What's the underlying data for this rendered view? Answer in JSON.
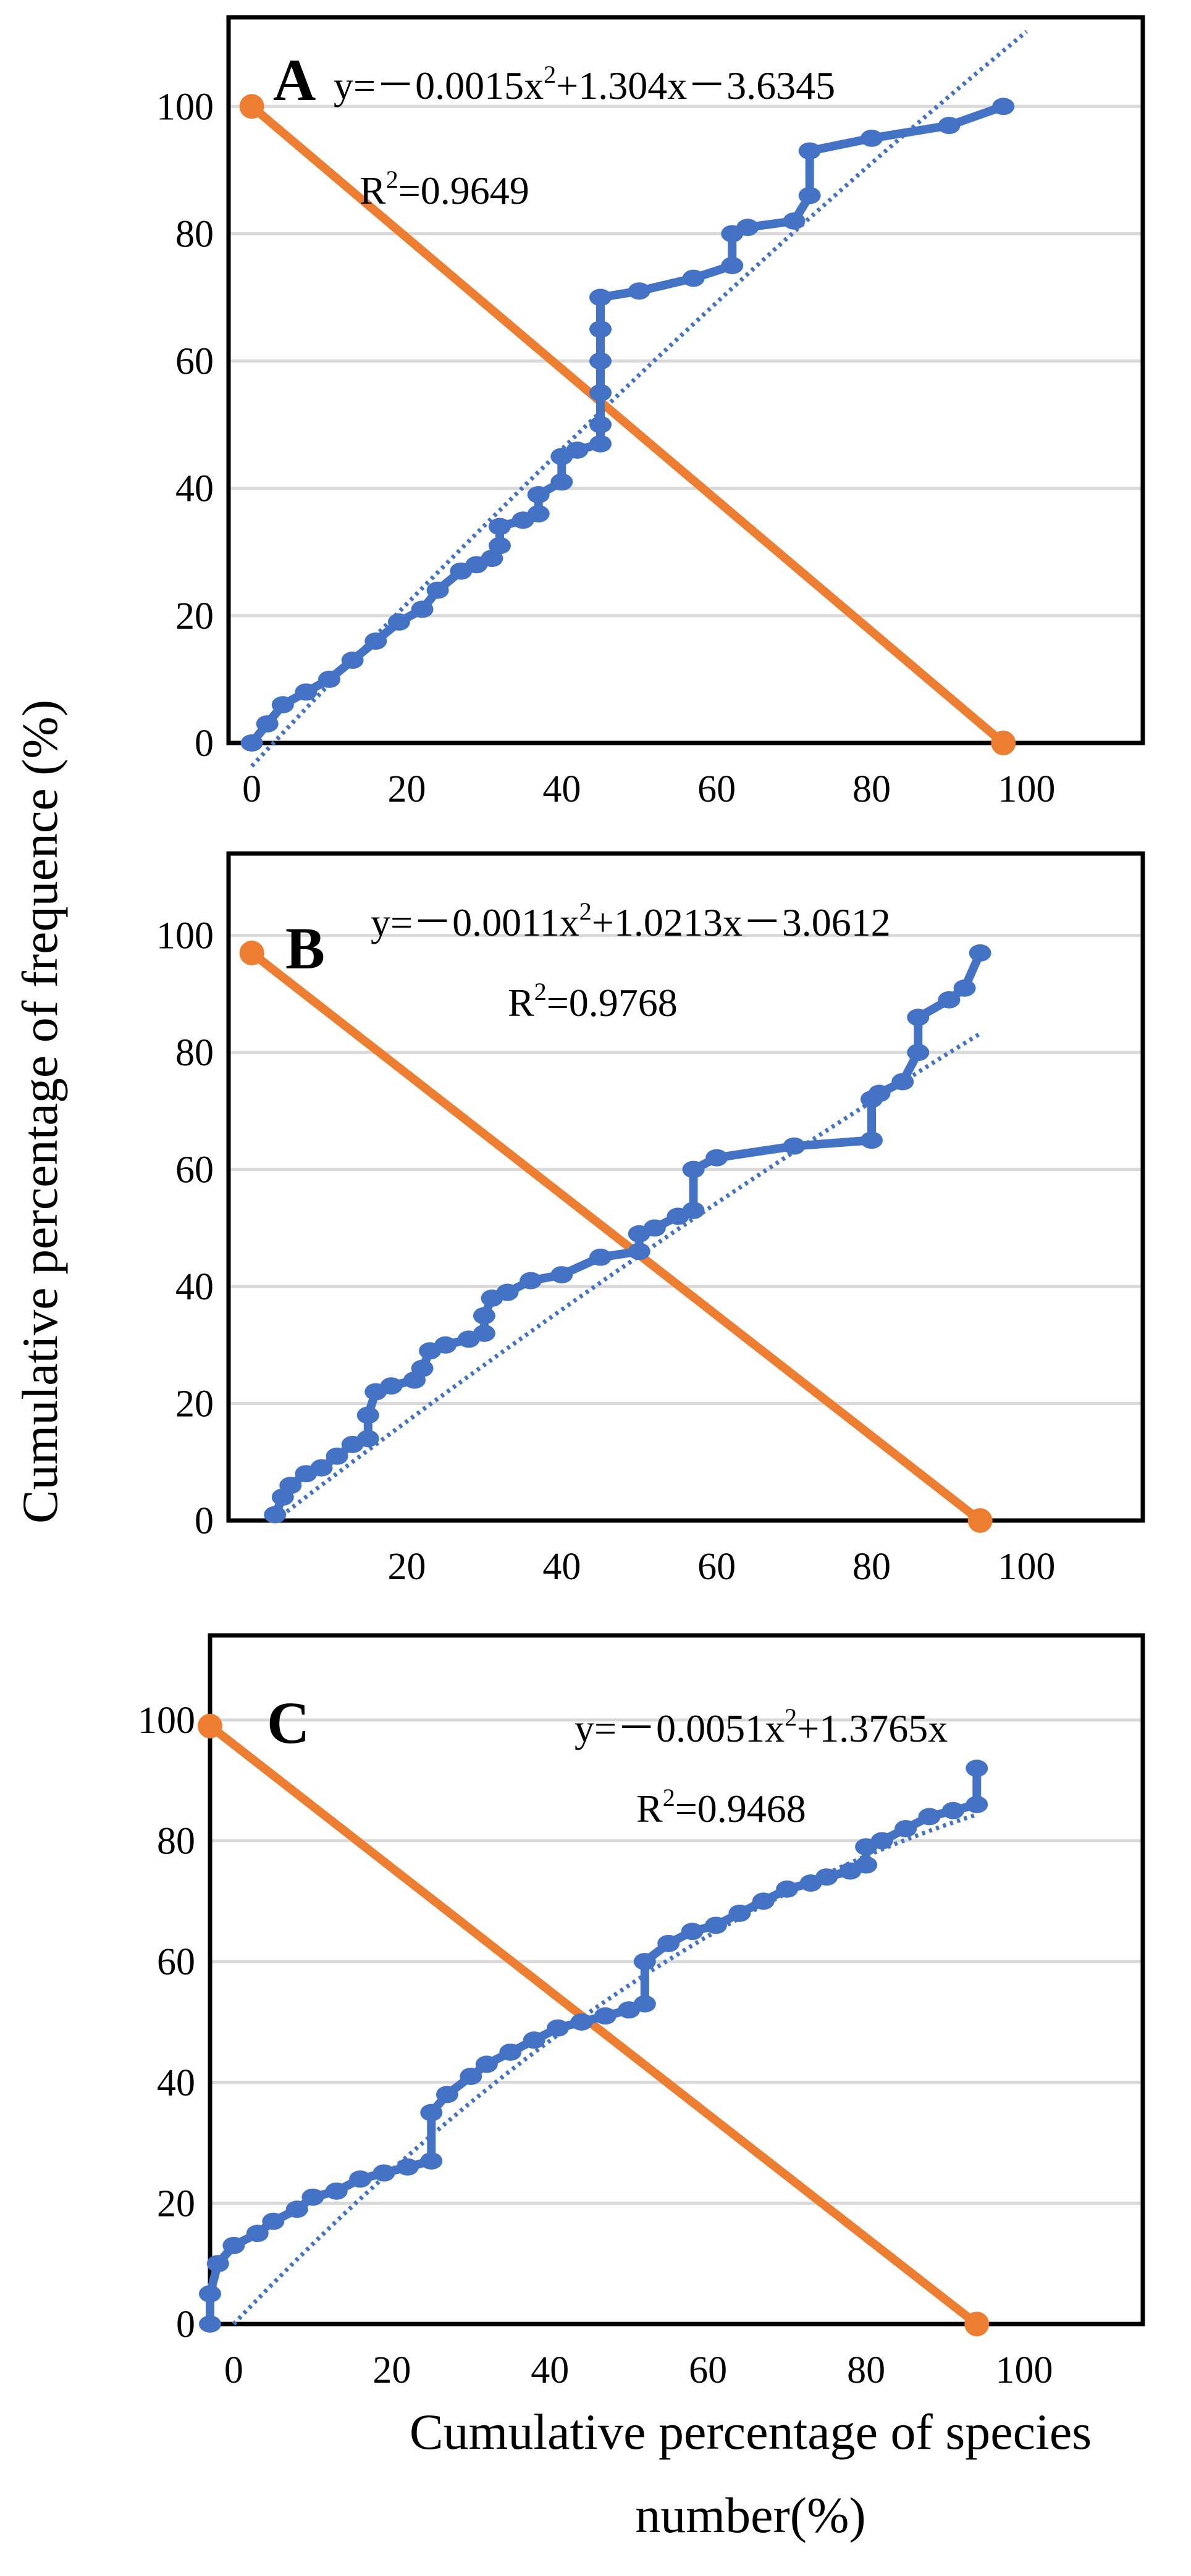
{
  "figure": {
    "ylabel": "Cumulative percentage of frequence (%)",
    "xlabel_line1": "Cumulative percentage of species",
    "xlabel_line2": "number(%)"
  },
  "colors": {
    "observed": "#4472C4",
    "diagonal": "#ED7D31",
    "grid": "#D9D9D9",
    "frame": "#000000"
  },
  "chart_data": [
    {
      "type": "line",
      "panel": "A",
      "equation": {
        "lead": "y=－0.0015x",
        "tail": "+1.304x－3.6345"
      },
      "r2": {
        "prefix": "R",
        "value": "=0.9649"
      },
      "xlim": [
        -3,
        115
      ],
      "ylim": [
        0,
        114
      ],
      "xticks": [
        0,
        20,
        40,
        60,
        80,
        100
      ],
      "yticks": [
        0,
        20,
        40,
        60,
        80,
        100
      ],
      "trend": {
        "a": -0.0015,
        "b": 1.304,
        "c": -3.6345,
        "x_from": 0,
        "x_to": 100
      },
      "diagonal": [
        [
          0,
          100
        ],
        [
          97,
          0
        ]
      ],
      "series": [
        {
          "name": "observed",
          "x": [
            0,
            2,
            4,
            7,
            10,
            13,
            16,
            19,
            22,
            24,
            27,
            29,
            31,
            32,
            32,
            35,
            37,
            37,
            40,
            40,
            42,
            45,
            45,
            45,
            45,
            45,
            45,
            50,
            57,
            62,
            62,
            64,
            70,
            72,
            72,
            80,
            90,
            97
          ],
          "y": [
            0,
            3,
            6,
            8,
            10,
            13,
            16,
            19,
            21,
            24,
            27,
            28,
            29,
            31,
            34,
            35,
            36,
            39,
            41,
            45,
            46,
            47,
            50,
            55,
            60,
            65,
            70,
            71,
            73,
            75,
            80,
            81,
            82,
            86,
            93,
            95,
            97,
            100
          ]
        }
      ]
    },
    {
      "type": "line",
      "panel": "B",
      "equation": {
        "lead": "y=－0.0011x",
        "tail": "+1.0213x－3.0612"
      },
      "r2": {
        "prefix": "R",
        "value": "=0.9768"
      },
      "xlim": [
        -3,
        115
      ],
      "ylim": [
        0,
        114
      ],
      "xticks": [
        20,
        40,
        60,
        80,
        100
      ],
      "yticks": [
        0,
        20,
        40,
        60,
        80,
        100
      ],
      "trend": {
        "a": -0.0011,
        "b": 1.0213,
        "c": -3.0612,
        "x_from": 3,
        "x_to": 94
      },
      "diagonal": [
        [
          0,
          97
        ],
        [
          94,
          0
        ]
      ],
      "series": [
        {
          "name": "observed",
          "x": [
            3,
            4,
            5,
            7,
            9,
            11,
            13,
            15,
            15,
            16,
            18,
            21,
            22,
            23,
            25,
            28,
            30,
            30,
            31,
            33,
            36,
            40,
            45,
            50,
            50,
            52,
            55,
            57,
            57,
            60,
            70,
            80,
            80,
            81,
            84,
            86,
            86,
            90,
            92,
            94
          ],
          "y": [
            1,
            4,
            6,
            8,
            9,
            11,
            13,
            14,
            18,
            22,
            23,
            24,
            26,
            29,
            30,
            31,
            32,
            35,
            38,
            39,
            41,
            42,
            45,
            46,
            49,
            50,
            52,
            53,
            60,
            62,
            64,
            65,
            72,
            73,
            75,
            80,
            86,
            89,
            91,
            97
          ]
        }
      ]
    },
    {
      "type": "line",
      "panel": "C",
      "equation": {
        "lead": "y=－0.0051x",
        "tail": "+1.3765x"
      },
      "r2": {
        "prefix": "R",
        "value": "=0.9468"
      },
      "xlim": [
        -3,
        115
      ],
      "ylim": [
        0,
        114
      ],
      "xticks": [
        0,
        20,
        40,
        60,
        80,
        100
      ],
      "yticks": [
        0,
        20,
        40,
        60,
        80,
        100
      ],
      "trend": {
        "a": -0.0051,
        "b": 1.3765,
        "c": 0,
        "x_from": 0,
        "x_to": 94
      },
      "diagonal": [
        [
          -3,
          99
        ],
        [
          94,
          0
        ]
      ],
      "series": [
        {
          "name": "observed",
          "x": [
            -3,
            -3,
            -2,
            0,
            3,
            5,
            8,
            10,
            13,
            16,
            19,
            22,
            25,
            25,
            27,
            30,
            32,
            35,
            38,
            41,
            44,
            47,
            50,
            52,
            52,
            55,
            58,
            61,
            64,
            67,
            70,
            73,
            75,
            78,
            80,
            80,
            82,
            85,
            88,
            91,
            94,
            94
          ],
          "y": [
            0,
            5,
            10,
            13,
            15,
            17,
            19,
            21,
            22,
            24,
            25,
            26,
            27,
            35,
            38,
            41,
            43,
            45,
            47,
            49,
            50,
            51,
            52,
            53,
            60,
            63,
            65,
            66,
            68,
            70,
            72,
            73,
            74,
            75,
            76,
            79,
            80,
            82,
            84,
            85,
            86,
            92
          ]
        }
      ]
    }
  ]
}
